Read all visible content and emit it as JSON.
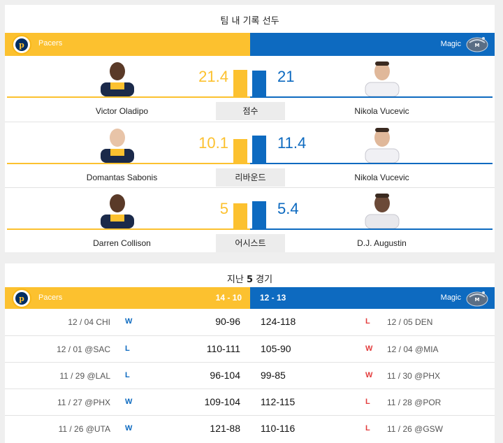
{
  "leaders": {
    "title": "팀 내 기록 선두",
    "home_team": "Pacers",
    "away_team": "Magic",
    "rows": [
      {
        "category": "점수",
        "left_player": "Victor Oladipo",
        "left_value": 21.4,
        "left_display": "21.4",
        "right_player": "Nikola Vucevic",
        "right_value": 21,
        "right_display": "21"
      },
      {
        "category": "리바운드",
        "left_player": "Domantas Sabonis",
        "left_value": 10.1,
        "left_display": "10.1",
        "right_player": "Nikola Vucevic",
        "right_value": 11.4,
        "right_display": "11.4"
      },
      {
        "category": "어시스트",
        "left_player": "Darren Collison",
        "left_value": 5,
        "left_display": "5",
        "right_player": "D.J. Augustin",
        "right_value": 5.4,
        "right_display": "5.4"
      }
    ]
  },
  "last5": {
    "title_prefix": "지난",
    "title_count": "5",
    "title_suffix": "경기",
    "home_team": "Pacers",
    "home_record": "14 - 10",
    "away_team": "Magic",
    "away_record": "12 - 13",
    "games": [
      {
        "left_date": "12 / 04 CHI",
        "left_result": "W",
        "left_score": "90-96",
        "right_score": "124-118",
        "right_result": "L",
        "right_date": "12 / 05 DEN"
      },
      {
        "left_date": "12 / 01 @SAC",
        "left_result": "L",
        "left_score": "110-111",
        "right_score": "105-90",
        "right_result": "W",
        "right_date": "12 / 04 @MIA"
      },
      {
        "left_date": "11 / 29 @LAL",
        "left_result": "L",
        "left_score": "96-104",
        "right_score": "99-85",
        "right_result": "W",
        "right_date": "11 / 30 @PHX"
      },
      {
        "left_date": "11 / 27 @PHX",
        "left_result": "W",
        "left_score": "109-104",
        "right_score": "112-115",
        "right_result": "L",
        "right_date": "11 / 28 @POR"
      },
      {
        "left_date": "11 / 26 @UTA",
        "left_result": "W",
        "left_score": "121-88",
        "right_score": "110-116",
        "right_result": "L",
        "right_date": "11 / 26 @GSW"
      }
    ]
  },
  "colors": {
    "pacers": "#fcc12f",
    "magic": "#0d6ac0",
    "win": "#0d6ac0",
    "loss": "#e33d3d"
  },
  "icons": {
    "home_logo": "pacers-logo-icon",
    "away_logo": "magic-logo-icon"
  }
}
